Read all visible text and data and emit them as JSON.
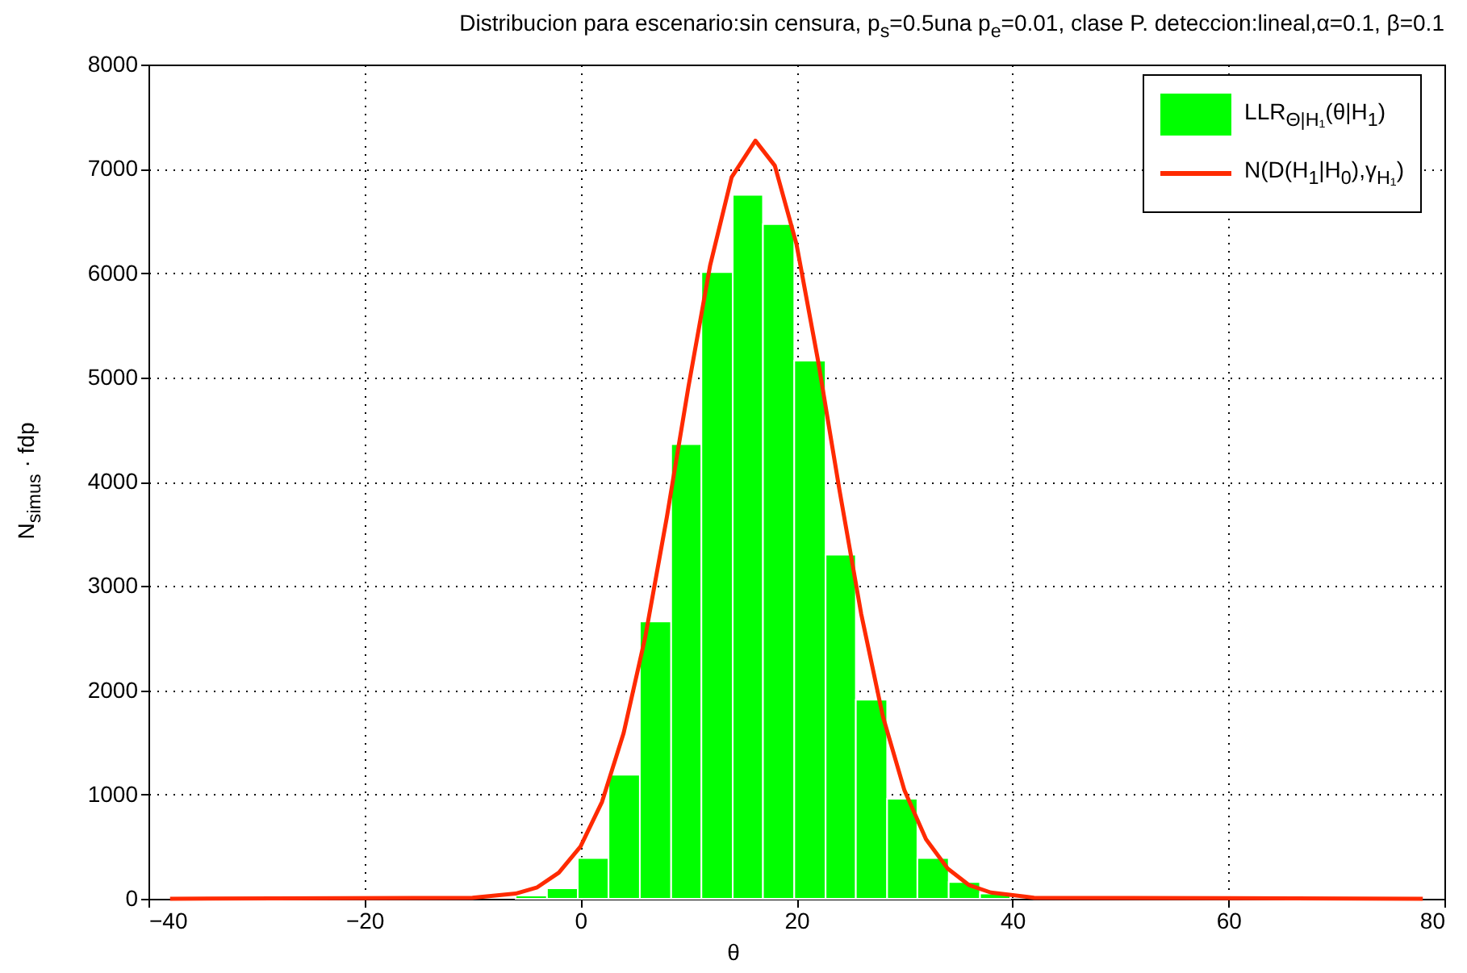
{
  "chart_data": {
    "type": "histogram",
    "title": "Distribucion para escenario:sin censura, p$_{s}$=0.5una p$_{e}$=0.01, clase P. deteccion:lineal,α=0.1, β=0.1",
    "xlabel": "θ",
    "ylabel": "N$_{simus}$ · fdp",
    "series": [
      {
        "name": "LLR$_{Θ|H₁}$(θ|H$_{1}$)",
        "color": "#00ff00",
        "bins": [
          -6,
          -3.1,
          -0.25,
          2.6,
          5.5,
          8.4,
          11.2,
          14.1,
          16.9,
          19.8,
          22.7,
          25.5,
          28.4,
          31.2,
          34.1,
          37,
          39.8
        ],
        "values": [
          30,
          100,
          390,
          1190,
          2660,
          4360,
          6010,
          6750,
          6470,
          5160,
          3300,
          1910,
          960,
          390,
          160,
          50
        ]
      },
      {
        "name": "N(D(H$_{1}$|H$_{0}$),γ$_{H₁}$)",
        "type": "line",
        "color": "#ff2a00",
        "x": [
          -38,
          -10,
          -6,
          -4,
          -2,
          0,
          2,
          4,
          6,
          8,
          10,
          12,
          14,
          16.2,
          18,
          20,
          22,
          24,
          26,
          28,
          30,
          32,
          34,
          36,
          38,
          42,
          78
        ],
        "values": [
          0,
          10,
          50,
          110,
          250,
          500,
          930,
          1590,
          2510,
          3660,
          4910,
          6070,
          6920,
          7270,
          7030,
          6280,
          5160,
          3910,
          2730,
          1750,
          1040,
          570,
          290,
          130,
          60,
          10,
          0
        ]
      }
    ],
    "xlim": [
      -40,
      80
    ],
    "xticks": [
      -40,
      -20,
      0,
      20,
      40,
      60,
      80
    ],
    "ylim": [
      0,
      8000
    ],
    "yticks": [
      0,
      1000,
      2000,
      3000,
      4000,
      5000,
      6000,
      7000,
      8000
    ],
    "grid": true,
    "legend": "top right"
  }
}
